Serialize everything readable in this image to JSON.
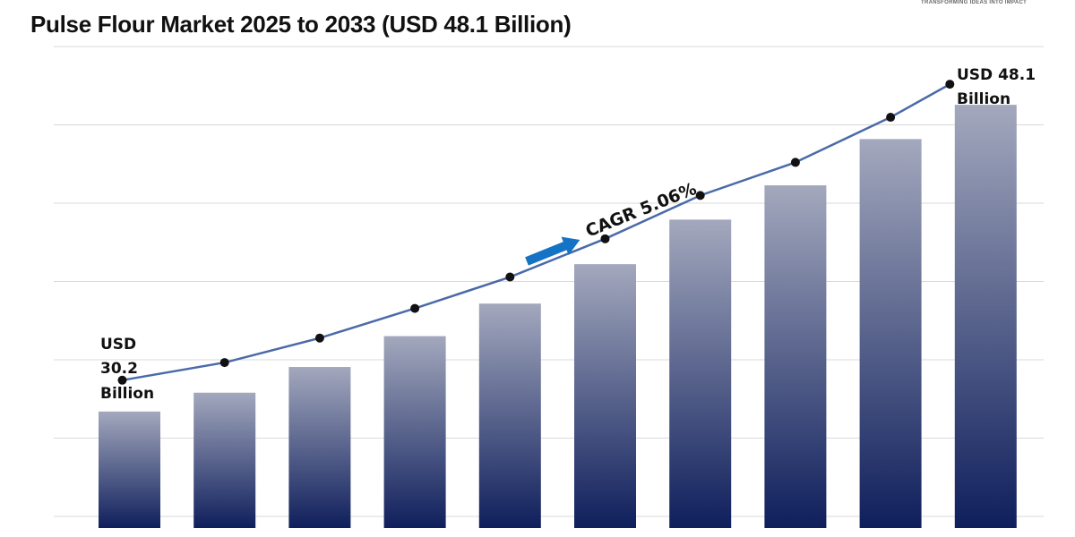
{
  "title": "Pulse Flour Market 2025 to 2033 (USD 48.1 Billion)",
  "logo_tagline": "TRANSFORMING IDEAS INTO IMPACT",
  "chart_data": {
    "type": "bar",
    "title": "Pulse Flour Market 2025 to 2033 (USD 48.1 Billion)",
    "values": [
      30.2,
      31.3,
      32.8,
      34.6,
      36.5,
      38.8,
      41.4,
      43.4,
      46.1,
      48.1
    ],
    "ylim": [
      23.4,
      51.5
    ],
    "grid": true,
    "trend_line": true,
    "annotations": {
      "start": [
        "USD",
        "30.2",
        "Billion"
      ],
      "end": [
        "USD 48.1",
        "Billion"
      ],
      "cagr": "CAGR 5.06%"
    },
    "colors": {
      "bar_top": "#a3a8bd",
      "bar_bottom": "#0f1f5c",
      "line": "#4a6aa8",
      "arrow": "#1473c4",
      "grid": "#d9d9d9"
    }
  }
}
